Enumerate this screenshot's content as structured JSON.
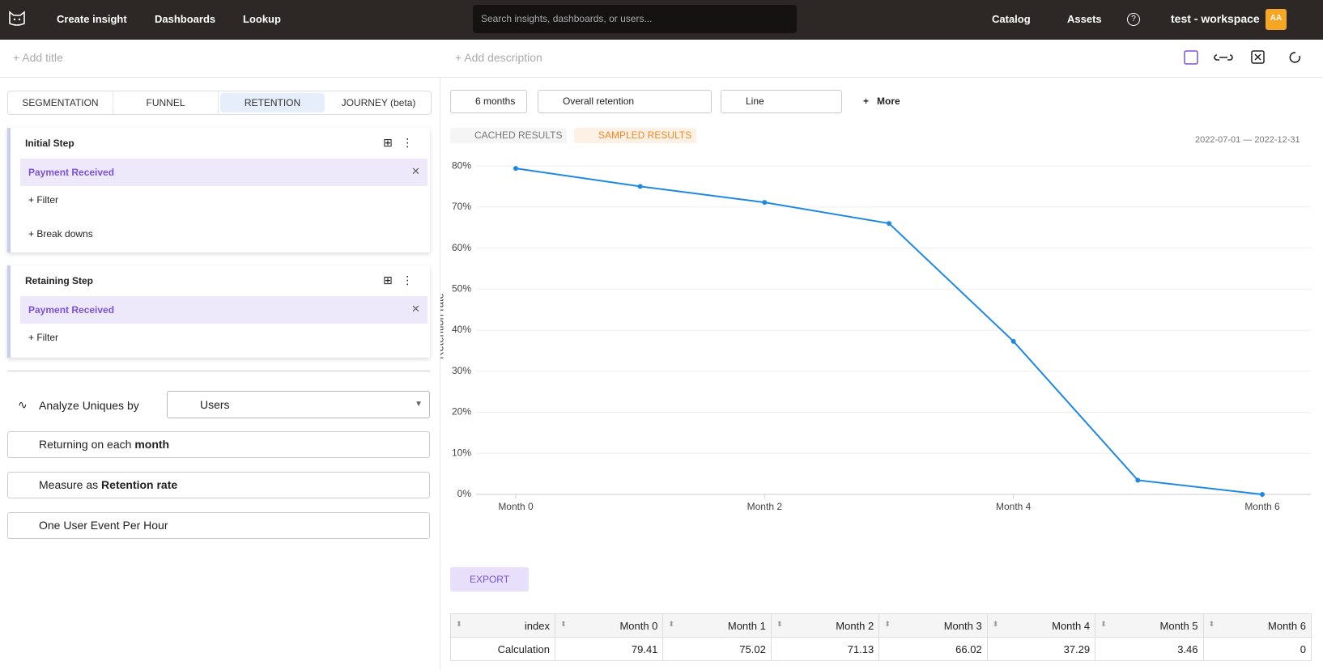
{
  "nav": {
    "items": [
      "Create insight",
      "Dashboards",
      "Lookup"
    ],
    "search_placeholder": "Search insights, dashboards, or users...",
    "right_items": [
      "Catalog",
      "Assets"
    ],
    "help": "?",
    "workspace": "test - workspace",
    "avatar": "AA"
  },
  "toolbar": {
    "add_title": "+ Add title",
    "add_description": "+ Add description"
  },
  "tabs": [
    "SEGMENTATION",
    "FUNNEL",
    "RETENTION",
    "JOURNEY (beta)"
  ],
  "steps": [
    {
      "title": "Initial Step",
      "event": "Payment Received",
      "actions": [
        "+ Filter",
        "+ Break downs"
      ]
    },
    {
      "title": "Retaining Step",
      "event": "Payment Received",
      "actions": [
        "+ Filter"
      ]
    }
  ],
  "analyze": {
    "label": "Analyze Uniques by",
    "value": "Users"
  },
  "options": [
    {
      "prefix": "Returning on each",
      "bold": "month"
    },
    {
      "prefix": "Measure as",
      "bold": "Retention rate"
    },
    {
      "prefix": "One User Event Per Hour"
    }
  ],
  "controls": {
    "range": "6 months",
    "retention": "Overall retention",
    "chart_kind": "Line",
    "more": "More"
  },
  "badges": {
    "cached": "CACHED RESULTS",
    "sampled": "SAMPLED RESULTS",
    "date_range": "2022-07-01 — 2022-12-31"
  },
  "chart_data": {
    "type": "line",
    "y_label": "Retention rate",
    "categories": [
      "Month 0",
      null,
      "Month 2",
      null,
      "Month 4",
      null,
      "Month 6"
    ],
    "series": [
      {
        "name": "Calculation",
        "color": "#1e88e5",
        "values": [
          79.41,
          75.02,
          71.13,
          66.02,
          37.29,
          3.46,
          0
        ]
      }
    ],
    "ylim": [
      0,
      82
    ],
    "yticks": [
      {
        "value": 0,
        "label": "0%"
      },
      {
        "value": 10,
        "label": "10%"
      },
      {
        "value": 20,
        "label": "20%"
      },
      {
        "value": 30,
        "label": "30%"
      },
      {
        "value": 40,
        "label": "40%"
      },
      {
        "value": 50,
        "label": "50%"
      },
      {
        "value": 60,
        "label": "60%"
      },
      {
        "value": 70,
        "label": "70%"
      },
      {
        "value": 80,
        "label": "80%"
      }
    ],
    "grid": true
  },
  "export": "EXPORT",
  "table": {
    "columns": [
      "index",
      "Month 0",
      "Month 1",
      "Month 2",
      "Month 3",
      "Month 4",
      "Month 5",
      "Month 6"
    ]
  }
}
